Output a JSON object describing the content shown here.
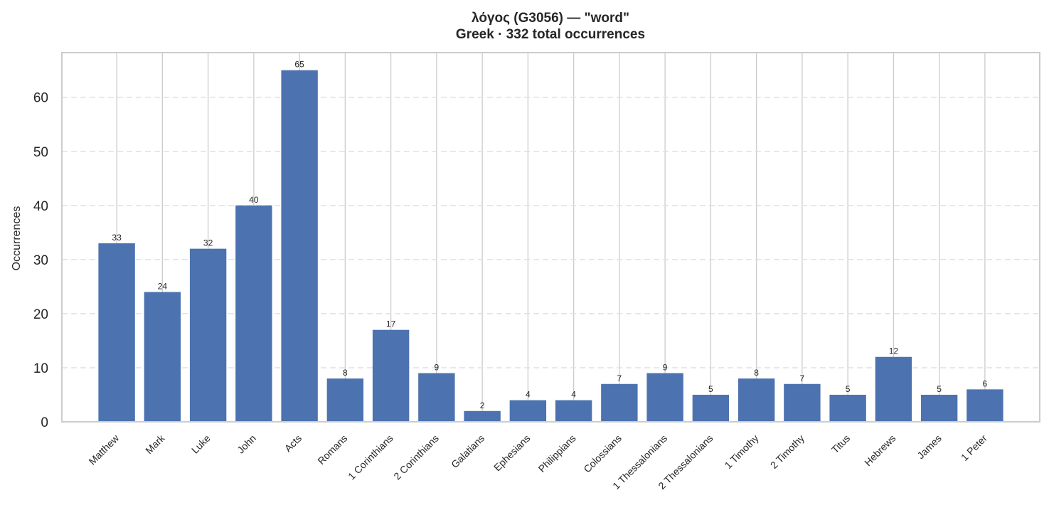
{
  "chart_data": {
    "type": "bar",
    "title": "λόγος (G3056)  —  \"word\"",
    "subtitle": "Greek · 332 total occurrences",
    "xlabel": "",
    "ylabel": "Occurrences",
    "ylim": [
      0,
      68.25
    ],
    "yticks": [
      0,
      10,
      20,
      30,
      40,
      50,
      60
    ],
    "grid": "y-dashed",
    "color": "#4c72b0",
    "categories": [
      "Matthew",
      "Mark",
      "Luke",
      "John",
      "Acts",
      "Romans",
      "1 Corinthians",
      "2 Corinthians",
      "Galatians",
      "Ephesians",
      "Philippians",
      "Colossians",
      "1 Thessalonians",
      "2 Thessalonians",
      "1 Timothy",
      "2 Timothy",
      "Titus",
      "Hebrews",
      "James",
      "1 Peter"
    ],
    "values": [
      33,
      24,
      32,
      40,
      65,
      8,
      17,
      9,
      2,
      4,
      4,
      7,
      9,
      5,
      8,
      7,
      5,
      12,
      5,
      6
    ]
  }
}
